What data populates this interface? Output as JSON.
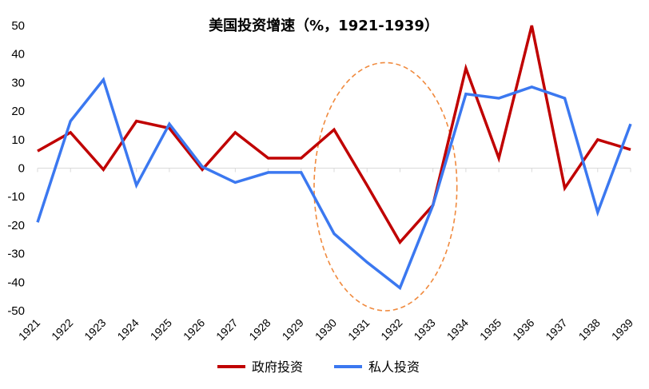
{
  "chart_data": {
    "type": "line",
    "title": "美国投资增速（%，1921-1939）",
    "xlabel": "",
    "ylabel": "",
    "ylim": [
      -50,
      50
    ],
    "yticks": [
      50,
      40,
      30,
      20,
      10,
      0,
      -10,
      -20,
      -30,
      -40,
      -50
    ],
    "grid": false,
    "legend": "bottom-center",
    "x": [
      "1921",
      "1922",
      "1923",
      "1924",
      "1925",
      "1926",
      "1927",
      "1928",
      "1929",
      "1930",
      "1931",
      "1932",
      "1933",
      "1934",
      "1935",
      "1936",
      "1937",
      "1938",
      "1939"
    ],
    "series": [
      {
        "name": "政府投资",
        "color": "#C00000",
        "values": [
          6,
          12.5,
          -0.5,
          16.5,
          14,
          -0.5,
          12.5,
          3.5,
          3.5,
          13.5,
          -6,
          -26,
          -13,
          35,
          3.5,
          50,
          -7,
          10,
          6.5
        ]
      },
      {
        "name": "私人投资",
        "color": "#3B78F0",
        "values": [
          -19,
          16.5,
          31,
          -6,
          15.5,
          0.5,
          -5,
          -1.5,
          -1.5,
          -23,
          -33,
          -42,
          -13,
          26,
          24.5,
          28.5,
          24.5,
          -15.5,
          15.5
        ]
      }
    ],
    "annotations": [
      {
        "shape": "dashed-ellipse",
        "color": "#F08A3E",
        "x_range": [
          "1930",
          "1933"
        ],
        "y_range": [
          -50,
          37
        ]
      }
    ]
  }
}
